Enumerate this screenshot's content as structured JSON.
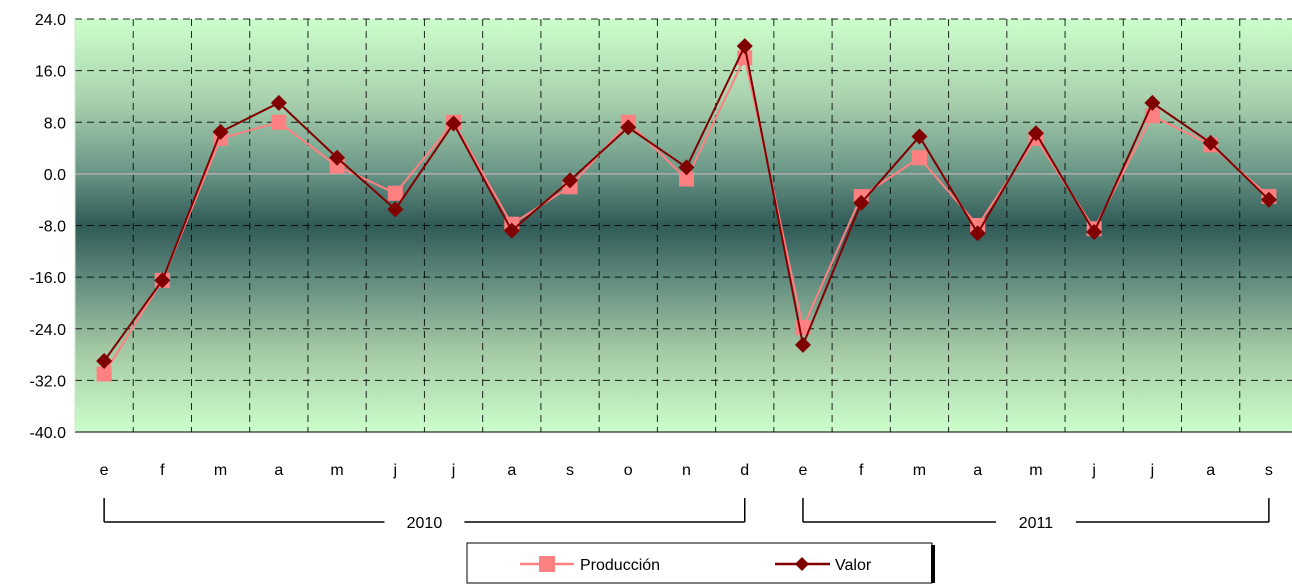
{
  "chart_data": {
    "type": "line",
    "categories": [
      "e",
      "f",
      "m",
      "a",
      "m",
      "j",
      "j",
      "a",
      "s",
      "o",
      "n",
      "d",
      "e",
      "f",
      "m",
      "a",
      "m",
      "j",
      "j",
      "a",
      "s"
    ],
    "year_groups": [
      {
        "label": "2010",
        "from": 0,
        "to": 11
      },
      {
        "label": "2011",
        "from": 12,
        "to": 20
      }
    ],
    "ylim": [
      -40,
      24
    ],
    "yticks": [
      "24.0",
      "16.0",
      "8.0",
      "0.0",
      "-8.0",
      "-16.0",
      "-24.0",
      "-32.0",
      "-40.0"
    ],
    "ytick_values": [
      24,
      16,
      8,
      0,
      -8,
      -16,
      -24,
      -32,
      -40
    ],
    "grid": true,
    "legend_position": "bottom",
    "series": [
      {
        "name": "Producción",
        "color": "#FF8080",
        "marker": "square",
        "values": [
          -31.0,
          -16.5,
          5.5,
          8.0,
          1.2,
          -3.0,
          8.0,
          -7.8,
          -2.0,
          8.0,
          -0.8,
          18.0,
          -23.8,
          -3.5,
          2.5,
          -8.0,
          5.5,
          -8.5,
          9.0,
          4.5,
          -3.5
        ]
      },
      {
        "name": "Valor",
        "color": "#800000",
        "marker": "diamond",
        "values": [
          -29.0,
          -16.5,
          6.5,
          11.0,
          2.5,
          -5.5,
          7.8,
          -8.8,
          -1.0,
          7.2,
          1.0,
          19.8,
          -26.5,
          -4.5,
          5.8,
          -9.2,
          6.3,
          -9.0,
          11.0,
          4.8,
          -4.0
        ]
      }
    ]
  },
  "legend": {
    "items": [
      {
        "label": "Producción"
      },
      {
        "label": "Valor"
      }
    ]
  }
}
